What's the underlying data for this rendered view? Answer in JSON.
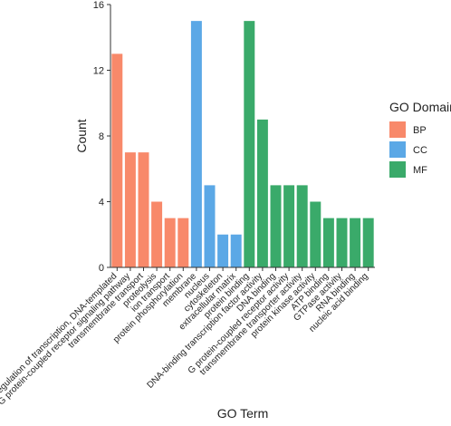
{
  "chart_data": {
    "type": "bar",
    "xlabel": "GO Term",
    "ylabel": "Count",
    "ylim": [
      0,
      16
    ],
    "yticks": [
      0,
      4,
      8,
      12,
      16
    ],
    "grid": false,
    "legend_position": "right",
    "legend_title": "GO Domain",
    "domains": [
      {
        "name": "BP",
        "color": "#F8896A"
      },
      {
        "name": "CC",
        "color": "#5BA8E6"
      },
      {
        "name": "MF",
        "color": "#3AAA6A"
      }
    ],
    "categories": [
      "regulation of transcription, DNA-templated",
      "G protein-coupled receptor signaling pathway",
      "transmembrane transport",
      "proteolysis",
      "ion transport",
      "protein phosphorylation",
      "membrane",
      "nucleus",
      "cytoskeleton",
      "extracellular matrix",
      "protein binding",
      "DNA-binding transcription factor activity",
      "DNA binding",
      "G protein-coupled receptor activity",
      "transmembrane transporter activity",
      "protein kinase activity",
      "ATP binding",
      "GTPase activity",
      "RNA binding",
      "nucleic acid binding"
    ],
    "values": [
      13,
      7,
      7,
      4,
      3,
      3,
      15,
      5,
      2,
      2,
      15,
      9,
      5,
      5,
      5,
      4,
      3,
      3,
      3,
      3
    ],
    "domain_of_category": [
      "BP",
      "BP",
      "BP",
      "BP",
      "BP",
      "BP",
      "CC",
      "CC",
      "CC",
      "CC",
      "MF",
      "MF",
      "MF",
      "MF",
      "MF",
      "MF",
      "MF",
      "MF",
      "MF",
      "MF"
    ]
  }
}
